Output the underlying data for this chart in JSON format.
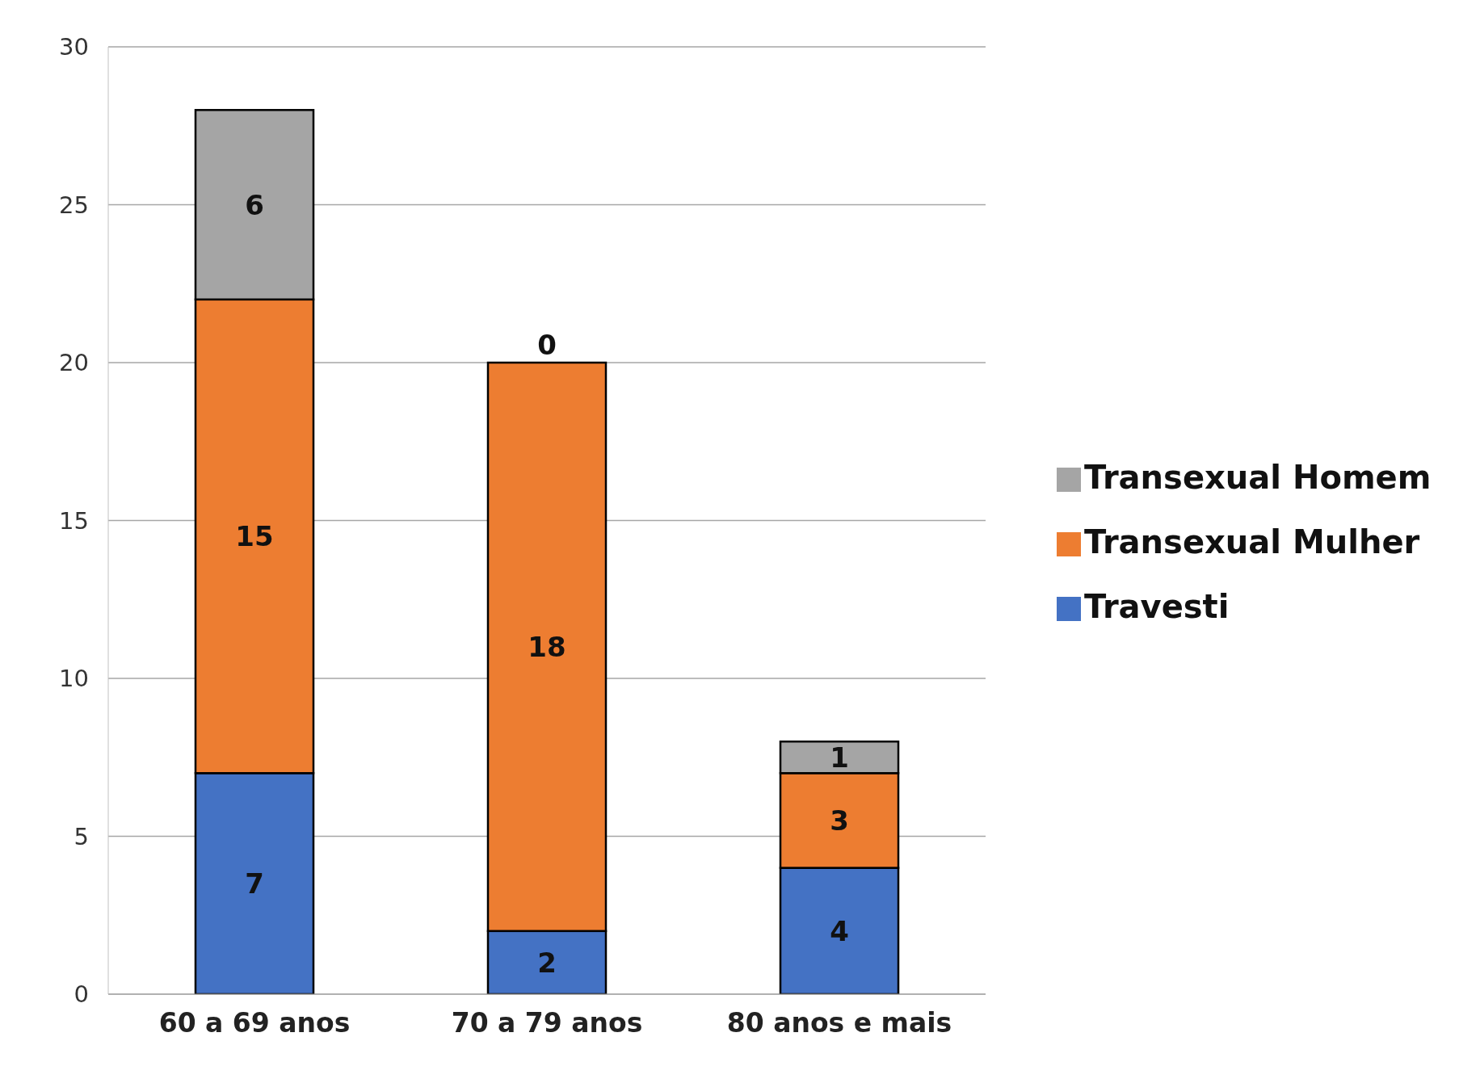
{
  "chart_data": {
    "type": "bar",
    "stacked": true,
    "categories": [
      "60 a 69 anos",
      "70 a 79 anos",
      "80 anos e mais"
    ],
    "series": [
      {
        "name": "Travesti",
        "color": "#4472c4",
        "values": [
          7,
          2,
          4
        ]
      },
      {
        "name": "Transexual Mulher",
        "color": "#ed7d31",
        "values": [
          15,
          18,
          3
        ]
      },
      {
        "name": "Transexual Homem",
        "color": "#a5a5a5",
        "values": [
          6,
          0,
          1
        ]
      }
    ],
    "ylim": [
      0,
      30
    ],
    "yticks": [
      0,
      5,
      10,
      15,
      20,
      25,
      30
    ],
    "grid": "y",
    "legend": "right",
    "data_labels": true
  }
}
